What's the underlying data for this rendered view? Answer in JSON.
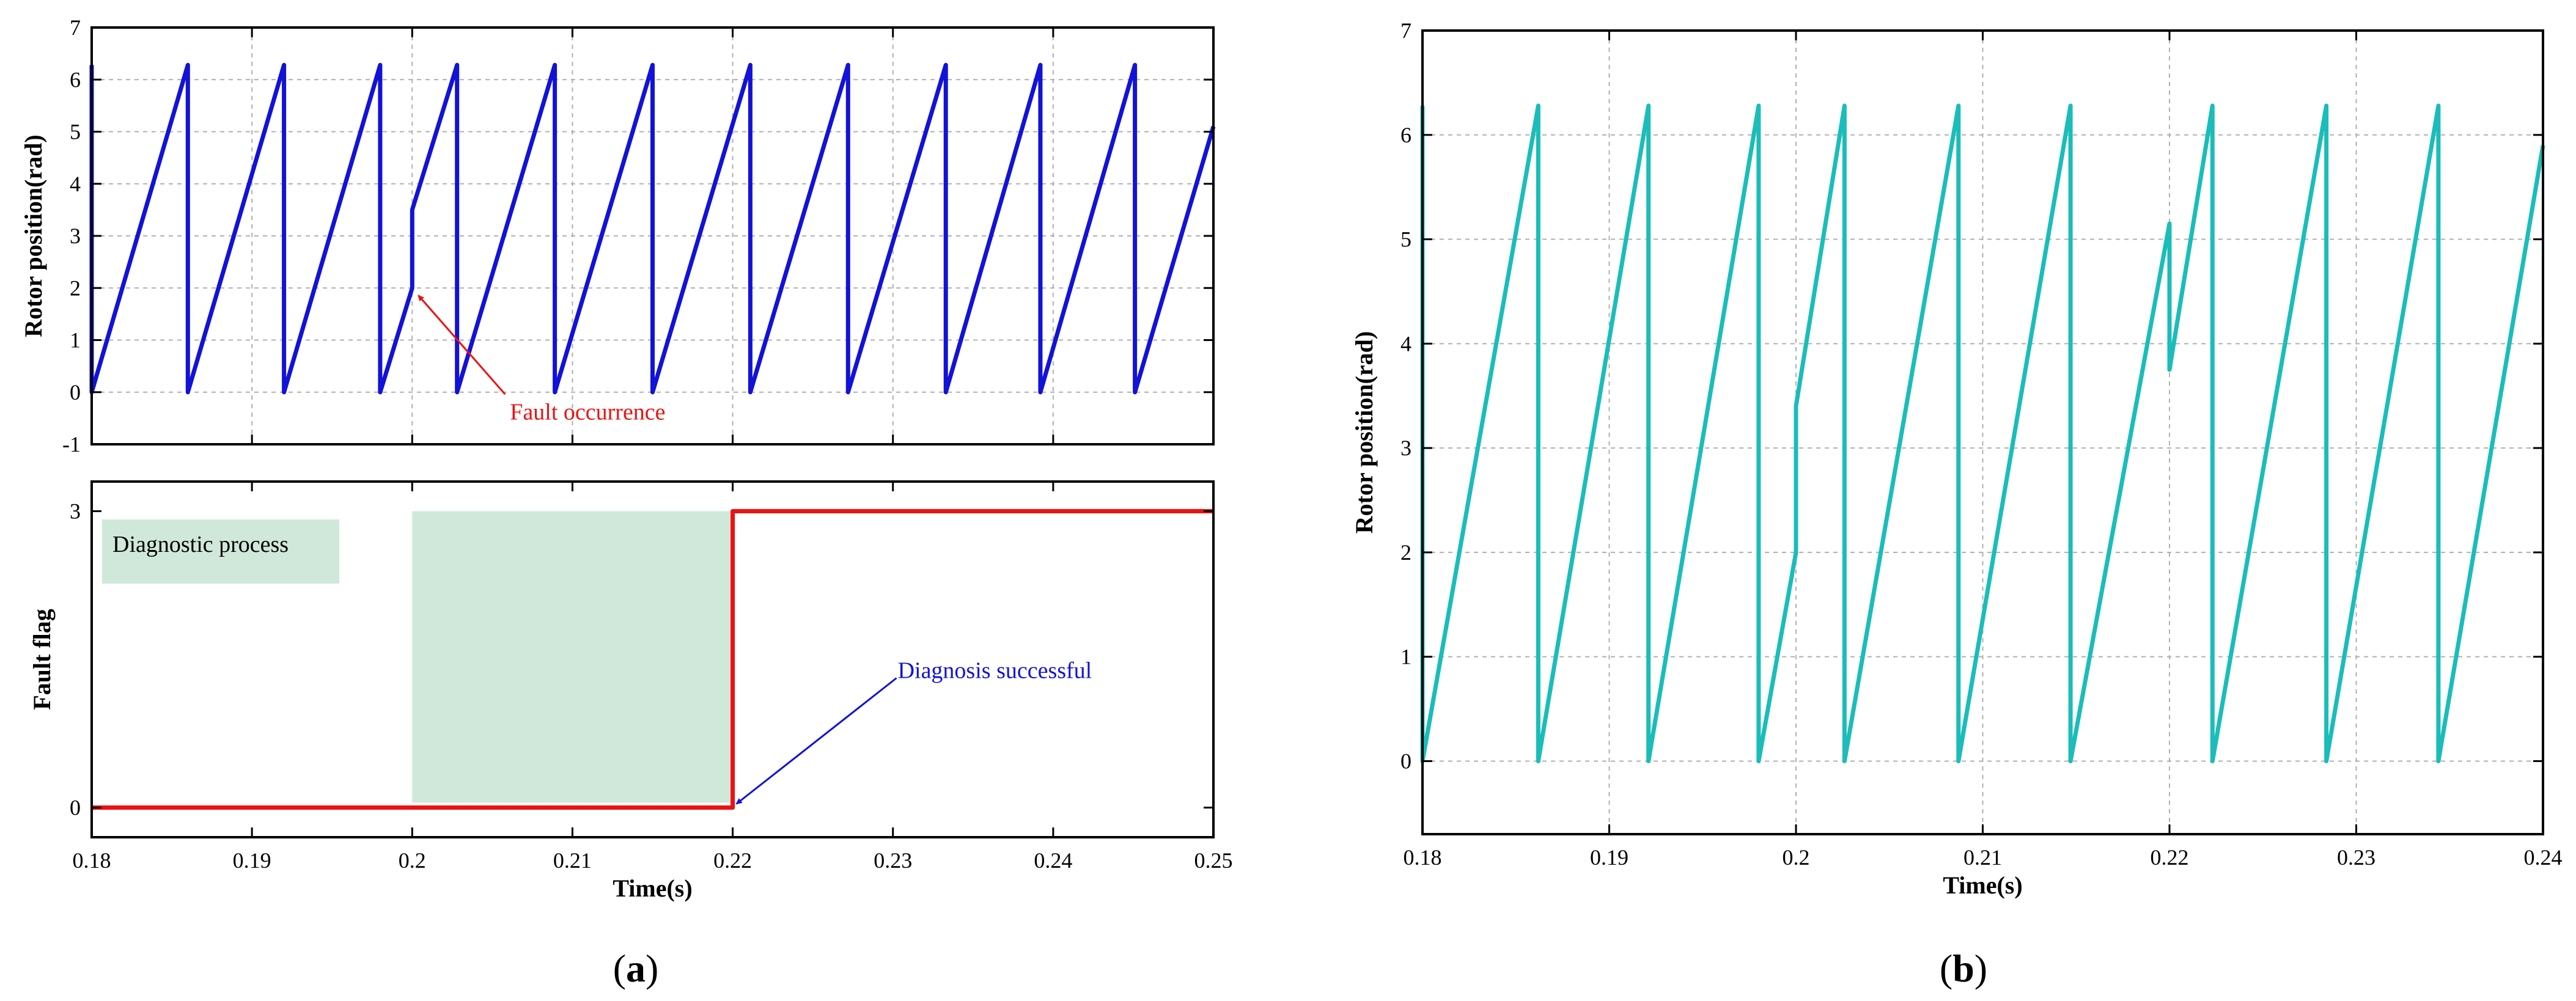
{
  "chart_data": [
    {
      "id": "a_top",
      "type": "line",
      "ylabel": "Rotor position(rad)",
      "xlim": [
        0.18,
        0.25
      ],
      "ylim": [
        -1,
        7
      ],
      "y_ticks": [
        "-1",
        "0",
        "1",
        "2",
        "3",
        "4",
        "5",
        "6",
        "7"
      ],
      "grid": true,
      "color": "#1212d8",
      "series": [
        {
          "x": [
            0.18,
            0.18,
            0.186,
            0.186,
            0.192,
            0.192,
            0.198,
            0.198,
            0.2,
            0.2,
            0.2028,
            0.2028,
            0.2089,
            0.2089,
            0.215,
            0.215,
            0.2211,
            0.2211,
            0.2272,
            0.2272,
            0.2333,
            0.2333,
            0.2392,
            0.2392,
            0.2451,
            0.2451,
            0.25
          ],
          "y": [
            6.28,
            0,
            6.28,
            0,
            6.28,
            0,
            6.28,
            0,
            2.0,
            3.5,
            6.28,
            0,
            6.28,
            0,
            6.28,
            0,
            6.28,
            0,
            6.28,
            0,
            6.28,
            0,
            6.28,
            0,
            6.28,
            0,
            5.1
          ]
        }
      ],
      "annotations": [
        {
          "text": "Fault occurrence",
          "x": 0.2,
          "y": 2.0,
          "color": "#ee1111"
        }
      ]
    },
    {
      "id": "a_bottom",
      "type": "line",
      "xlabel": "Time(s)",
      "ylabel": "Fault flag",
      "xlim": [
        0.18,
        0.25
      ],
      "ylim": [
        -0.3,
        3.3
      ],
      "x_ticks": [
        "0.18",
        "0.19",
        "0.2",
        "0.21",
        "0.22",
        "0.23",
        "0.24",
        "0.25"
      ],
      "y_ticks": [
        "0",
        "3"
      ],
      "grid": false,
      "color": "#ee1111",
      "series": [
        {
          "x": [
            0.18,
            0.22,
            0.22,
            0.25
          ],
          "y": [
            0,
            0,
            3,
            3
          ]
        }
      ],
      "shaded_region": {
        "x": [
          0.2,
          0.22
        ],
        "y": [
          0.05,
          3.0
        ],
        "color": "#cfe8da"
      },
      "legend": {
        "text": "Diagnostic process",
        "placement": "top-left",
        "color": "#cfe8da"
      },
      "annotations": [
        {
          "text": "Diagnosis successful",
          "x": 0.22,
          "y": 0,
          "color": "#1212d8"
        }
      ],
      "caption": {
        "open": "(",
        "letter": "a",
        "close": ")"
      }
    },
    {
      "id": "b",
      "type": "line",
      "xlabel": "Time(s)",
      "ylabel": "Rotor position(rad)",
      "xlim": [
        0.18,
        0.24
      ],
      "ylim": [
        -0.7,
        7
      ],
      "x_ticks": [
        "0.18",
        "0.19",
        "0.2",
        "0.21",
        "0.22",
        "0.23",
        "0.24"
      ],
      "y_ticks": [
        "0",
        "1",
        "2",
        "3",
        "4",
        "5",
        "6",
        "7"
      ],
      "grid": true,
      "color": "#1abdb9",
      "series": [
        {
          "x": [
            0.18,
            0.18,
            0.1862,
            0.1862,
            0.1921,
            0.1921,
            0.198,
            0.198,
            0.2,
            0.2,
            0.2026,
            0.2026,
            0.2087,
            0.2087,
            0.2147,
            0.2147,
            0.22,
            0.22,
            0.2223,
            0.2223,
            0.2284,
            0.2284,
            0.2344,
            0.2344,
            0.24
          ],
          "y": [
            6.28,
            0,
            6.28,
            0,
            6.28,
            0,
            6.28,
            0,
            2.0,
            3.4,
            6.28,
            0,
            6.28,
            0,
            6.28,
            0,
            5.15,
            3.75,
            6.28,
            0,
            6.28,
            0,
            6.28,
            0,
            5.9
          ]
        }
      ],
      "caption": {
        "open": "(",
        "letter": "b",
        "close": ")"
      }
    }
  ]
}
